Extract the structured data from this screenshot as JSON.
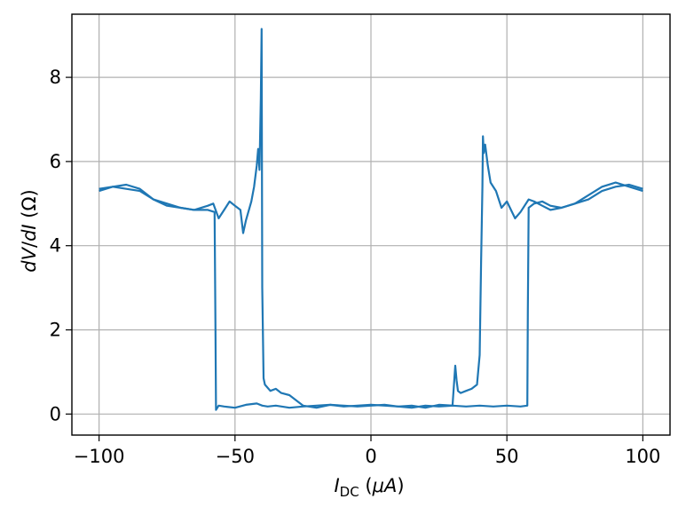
{
  "chart_data": {
    "type": "line",
    "title": "",
    "xlabel": {
      "main": "I",
      "sub": "DC",
      "unit_open": " (",
      "unit_mu": "μ",
      "unit_a": "A",
      "unit_close": ")"
    },
    "ylabel": {
      "d1": "d",
      "v": "V",
      "slash": "/",
      "d2": "d",
      "i": "I",
      "unit": " (Ω)"
    },
    "xlim": [
      -110,
      110
    ],
    "ylim": [
      -0.5,
      9.5
    ],
    "x_ticks": [
      -100,
      -50,
      0,
      50,
      100
    ],
    "x_tick_labels": [
      "−100",
      "−50",
      "0",
      "50",
      "100"
    ],
    "y_ticks": [
      0,
      2,
      4,
      6,
      8
    ],
    "y_tick_labels": [
      "0",
      "2",
      "4",
      "6",
      "8"
    ],
    "grid": true,
    "color": "#1f77b4",
    "series": [
      {
        "x": [
          -100,
          -95,
          -90,
          -85,
          -80,
          -75,
          -70,
          -65,
          -60,
          -57.5,
          -57.2,
          -57,
          -56,
          -54,
          -50,
          -46,
          -42,
          -40,
          -38,
          -35,
          -30,
          -25,
          -20,
          -15,
          -10,
          -5,
          0,
          5,
          10,
          15,
          20,
          25,
          30,
          35,
          40,
          45,
          50,
          55,
          57.5,
          57.7,
          58,
          60,
          63,
          66,
          70,
          75,
          80,
          85,
          90,
          95,
          100
        ],
        "y": [
          5.35,
          5.4,
          5.45,
          5.35,
          5.1,
          4.95,
          4.9,
          4.85,
          4.85,
          4.8,
          2.0,
          0.1,
          0.2,
          0.18,
          0.15,
          0.22,
          0.25,
          0.2,
          0.18,
          0.2,
          0.15,
          0.18,
          0.2,
          0.22,
          0.18,
          0.2,
          0.22,
          0.2,
          0.18,
          0.15,
          0.2,
          0.18,
          0.2,
          0.18,
          0.2,
          0.18,
          0.2,
          0.18,
          0.2,
          2.5,
          4.9,
          5.0,
          5.05,
          4.95,
          4.9,
          5.0,
          5.1,
          5.3,
          5.4,
          5.45,
          5.35
        ]
      },
      {
        "x": [
          100,
          95,
          90,
          85,
          80,
          75,
          70,
          66,
          63,
          60,
          58,
          55,
          53,
          50,
          48,
          46,
          44,
          43,
          42,
          41.5,
          41.2,
          41,
          40.5,
          40,
          39,
          37,
          35,
          33,
          32,
          31.5,
          31,
          30,
          25,
          20,
          15,
          10,
          5,
          0,
          -5,
          -10,
          -15,
          -20,
          -25,
          -30,
          -33,
          -35,
          -37,
          -39,
          -39.5,
          -40,
          -40.2,
          -40.5,
          -41,
          -41.5,
          -42,
          -43,
          -44,
          -46,
          -47,
          -48,
          -50,
          -52,
          -54,
          -56,
          -58,
          -60,
          -65,
          -70,
          -75,
          -80,
          -85,
          -90,
          -95,
          -100
        ],
        "y": [
          5.3,
          5.4,
          5.5,
          5.4,
          5.2,
          5.0,
          4.9,
          4.85,
          4.95,
          5.05,
          5.1,
          4.8,
          4.65,
          5.05,
          4.9,
          5.3,
          5.5,
          5.9,
          6.4,
          6.2,
          6.6,
          5.4,
          3.6,
          1.4,
          0.7,
          0.6,
          0.55,
          0.5,
          0.55,
          0.8,
          1.15,
          0.2,
          0.22,
          0.15,
          0.2,
          0.18,
          0.22,
          0.2,
          0.18,
          0.2,
          0.22,
          0.15,
          0.2,
          0.45,
          0.5,
          0.6,
          0.55,
          0.7,
          0.85,
          3.0,
          9.15,
          7.5,
          5.8,
          6.3,
          5.9,
          5.4,
          5.05,
          4.6,
          4.3,
          4.85,
          4.95,
          5.05,
          4.85,
          4.65,
          5.0,
          4.95,
          4.85,
          4.9,
          5.0,
          5.1,
          5.3,
          5.35,
          5.4,
          5.3
        ]
      }
    ]
  }
}
